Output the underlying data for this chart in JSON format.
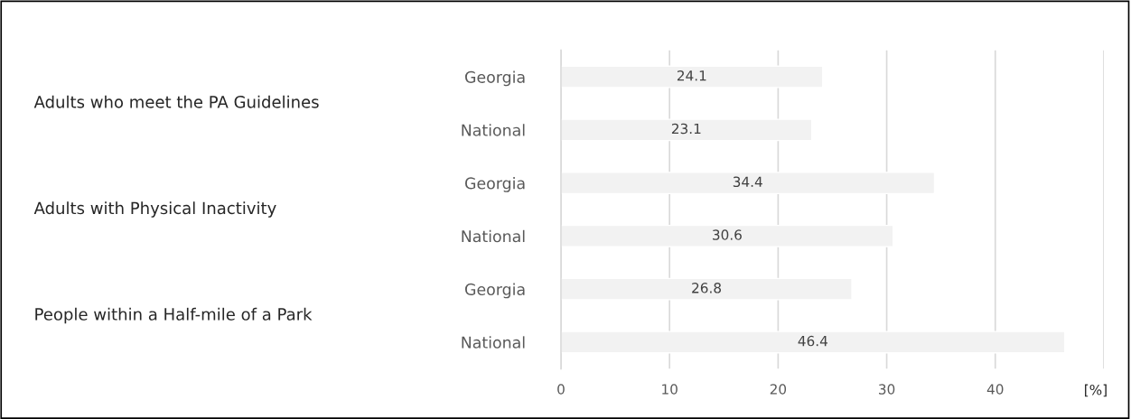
{
  "chart_data": {
    "type": "bar",
    "orientation": "horizontal",
    "categories": [
      "Georgia",
      "National",
      "Georgia",
      "National",
      "Georgia",
      "National"
    ],
    "values": [
      24.1,
      23.1,
      34.4,
      30.6,
      26.8,
      46.4
    ],
    "color": "#f2f2f2",
    "data_labels": true,
    "xlim": [
      0,
      50
    ],
    "xticks": [
      0,
      10,
      20,
      30,
      40,
      {
        "value": 50,
        "label": null
      }
    ],
    "xlabel": "[%]",
    "grid": "x",
    "annotations": [
      "Adults who meet the PA Guidelines",
      "Adults with Physical Inactivity",
      "People within a Half-mile of a Park"
    ]
  }
}
